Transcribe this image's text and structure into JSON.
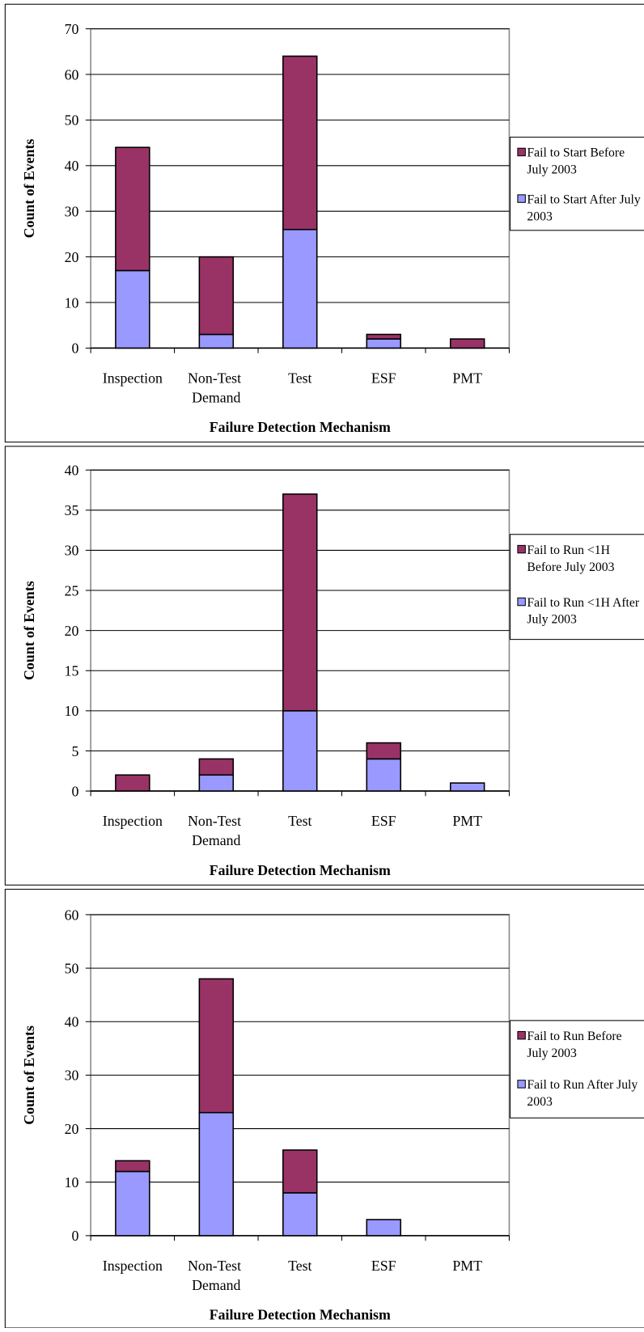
{
  "chart_data": [
    {
      "type": "stacked-bar",
      "y_label": "Count of Events",
      "x_label": "Failure Detection Mechanism",
      "categories": [
        "Inspection",
        "Non-Test Demand",
        "Test",
        "ESF",
        "PMT"
      ],
      "series": [
        {
          "name": "Fail to Start Before July 2003",
          "color": "#993366",
          "values": [
            27,
            17,
            38,
            1,
            2
          ]
        },
        {
          "name": "Fail to Start After July 2003",
          "color": "#9999ff",
          "values": [
            17,
            3,
            26,
            2,
            0
          ]
        }
      ],
      "ylim": [
        0,
        70
      ],
      "yticks": [
        0,
        10,
        20,
        30,
        40,
        50,
        60,
        70
      ],
      "grid": true,
      "legend": "right"
    },
    {
      "type": "stacked-bar",
      "y_label": "Count of Events",
      "x_label": "Failure Detection Mechanism",
      "categories": [
        "Inspection",
        "Non-Test Demand",
        "Test",
        "ESF",
        "PMT"
      ],
      "series": [
        {
          "name": "Fail to Run <1H Before July 2003",
          "color": "#993366",
          "values": [
            2,
            2,
            27,
            2,
            0
          ]
        },
        {
          "name": "Fail to Run <1H After July 2003",
          "color": "#9999ff",
          "values": [
            0,
            2,
            10,
            4,
            1
          ]
        }
      ],
      "ylim": [
        0,
        40
      ],
      "yticks": [
        0,
        5,
        10,
        15,
        20,
        25,
        30,
        35,
        40
      ],
      "grid": true,
      "legend": "right"
    },
    {
      "type": "stacked-bar",
      "y_label": "Count of Events",
      "x_label": "Failure Detection Mechanism",
      "categories": [
        "Inspection",
        "Non-Test Demand",
        "Test",
        "ESF",
        "PMT"
      ],
      "series": [
        {
          "name": "Fail to Run Before July 2003",
          "color": "#993366",
          "values": [
            2,
            25,
            8,
            0,
            0
          ]
        },
        {
          "name": "Fail to Run After July 2003",
          "color": "#9999ff",
          "values": [
            12,
            23,
            8,
            3,
            0
          ]
        }
      ],
      "ylim": [
        0,
        60
      ],
      "yticks": [
        0,
        10,
        20,
        30,
        40,
        50,
        60
      ],
      "grid": true,
      "legend": "right"
    }
  ]
}
